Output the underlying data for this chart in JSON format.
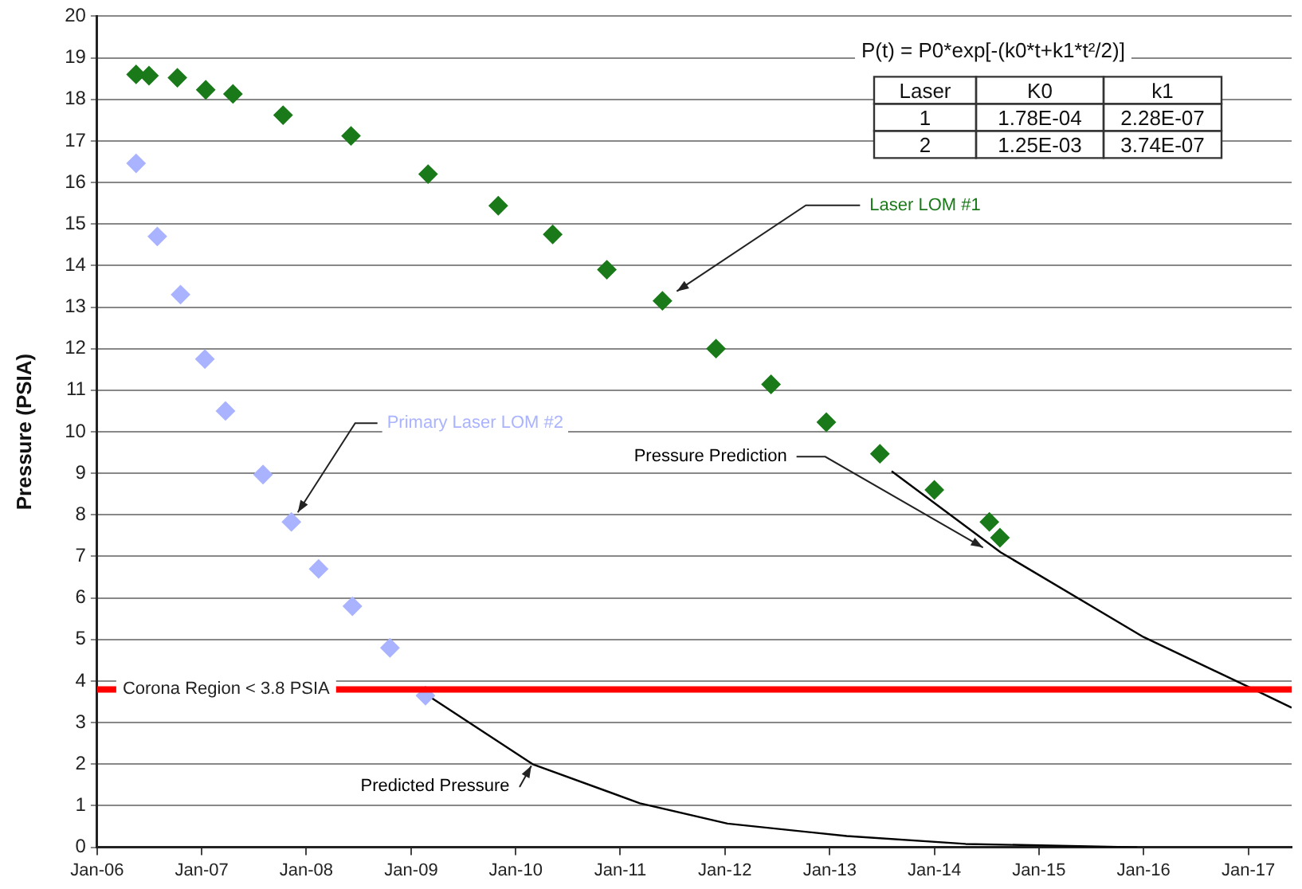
{
  "chart_data": {
    "type": "scatter",
    "ylabel": "Pressure (PSIA)",
    "xlim": [
      "2006-01-01",
      "2017-06-01"
    ],
    "xticks": [
      {
        "value": "2006-01-01",
        "label": "Jan-06"
      },
      {
        "value": "2007-01-01",
        "label": "Jan-07"
      },
      {
        "value": "2008-01-01",
        "label": "Jan-08"
      },
      {
        "value": "2009-01-01",
        "label": "Jan-09"
      },
      {
        "value": "2010-01-01",
        "label": "Jan-10"
      },
      {
        "value": "2011-01-01",
        "label": "Jan-11"
      },
      {
        "value": "2012-01-01",
        "label": "Jan-12"
      },
      {
        "value": "2013-01-01",
        "label": "Jan-13"
      },
      {
        "value": "2014-01-01",
        "label": "Jan-14"
      },
      {
        "value": "2015-01-01",
        "label": "Jan-15"
      },
      {
        "value": "2016-01-01",
        "label": "Jan-16"
      },
      {
        "value": "2017-01-01",
        "label": "Jan-17"
      }
    ],
    "ylim": [
      0,
      20
    ],
    "yticks": [
      0,
      1,
      2,
      3,
      4,
      5,
      6,
      7,
      8,
      9,
      10,
      11,
      12,
      13,
      14,
      15,
      16,
      17,
      18,
      19,
      20
    ],
    "grid": "y",
    "legend": false,
    "series": [
      {
        "type": "line",
        "name": "Predicted Pressure",
        "color": "#000000",
        "marker": "none",
        "line_style": "solid",
        "x": [
          "2009-03-01",
          "2010-03-01",
          "2011-03-10",
          "2012-01-10",
          "2013-03-01",
          "2014-04-20",
          "2015-12-10"
        ],
        "values": [
          3.65,
          2.0,
          1.06,
          0.57,
          0.27,
          0.08,
          0.0
        ]
      },
      {
        "type": "line",
        "name": "Pressure Prediction",
        "color": "#000000",
        "marker": "none",
        "line_style": "solid",
        "x": [
          "2013-08-05",
          "2014-08-20",
          "2016-01-01",
          "2017-01-08",
          "2017-06-01"
        ],
        "values": [
          9.05,
          7.1,
          5.06,
          3.84,
          3.36
        ]
      },
      {
        "type": "scatter",
        "color": "#1a7a1a",
        "marker": "diamond",
        "x": [
          "2006-05-17",
          "2006-07-01",
          "2006-10-08",
          "2007-01-15",
          "2007-04-20",
          "2007-10-12",
          "2008-06-05"
        ],
        "values": [
          18.6,
          18.57,
          18.52,
          18.23,
          18.13,
          17.62,
          17.12
        ]
      },
      {
        "type": "scatter",
        "name": "Laser LOM #1",
        "color": "#1a7a1a",
        "marker": "diamond",
        "x": [
          "2009-03-01",
          "2009-11-01",
          "2010-05-10",
          "2010-11-15",
          "2011-05-28",
          "2011-12-01",
          "2012-06-10",
          "2012-12-20",
          "2013-06-25",
          "2014-01-01",
          "2014-07-12",
          "2014-08-18"
        ],
        "values": [
          16.2,
          15.44,
          14.75,
          13.9,
          13.15,
          12.0,
          11.14,
          10.23,
          9.47,
          8.6,
          7.83,
          7.45
        ]
      },
      {
        "type": "scatter",
        "name": "Primary Laser LOM #2",
        "color": "#a9b3ff",
        "marker": "diamond",
        "x": [
          "2006-05-17",
          "2006-07-30",
          "2006-10-19",
          "2007-01-12",
          "2007-03-25",
          "2007-08-03",
          "2007-11-10",
          "2008-02-13",
          "2008-06-10",
          "2008-10-19",
          "2009-02-20"
        ],
        "values": [
          16.46,
          14.7,
          13.3,
          11.75,
          10.5,
          8.97,
          7.83,
          6.7,
          5.8,
          4.8,
          3.65
        ]
      }
    ],
    "ref_lines": [
      {
        "axis": "y",
        "value": 3.8,
        "label": "Corona Region < 3.8 PSIA",
        "color": "#ff0000"
      }
    ],
    "annotations": [
      "P(t) = P0*exp[-(k0*t+k1*t²/2)]",
      "Laser",
      "K0",
      "k1",
      "1",
      "1.78E-04",
      "2.28E-07",
      "2",
      "1.25E-03",
      "3.74E-07"
    ]
  }
}
